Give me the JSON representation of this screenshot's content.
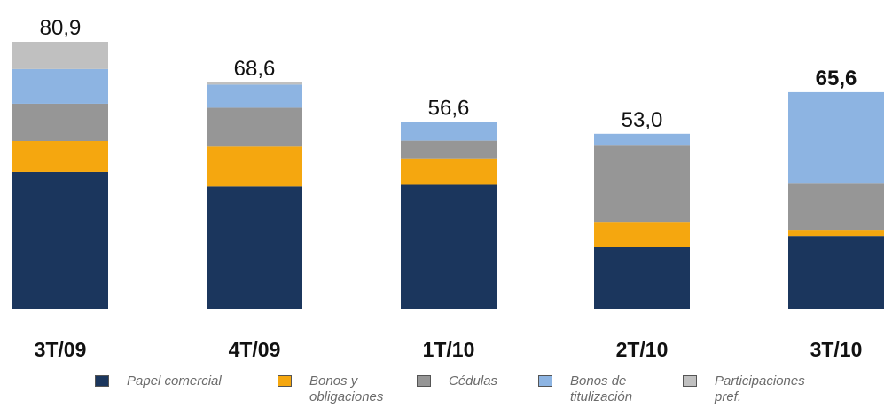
{
  "chart_data": {
    "type": "stacked_bar",
    "categories": [
      "3T/09",
      "4T/09",
      "1T/10",
      "2T/10",
      "3T/10"
    ],
    "series": [
      {
        "name": "Papel comercial",
        "color": "#1b365d",
        "values": [
          41.4,
          37.0,
          37.5,
          18.8,
          22.0
        ]
      },
      {
        "name": "Bonos y obligaciones",
        "color": "#f5a70f",
        "values": [
          9.4,
          12.1,
          8.0,
          7.5,
          1.9
        ]
      },
      {
        "name": "Cédulas",
        "color": "#969696",
        "values": [
          11.3,
          11.8,
          5.4,
          23.1,
          14.2
        ]
      },
      {
        "name": "Bonos de titulización",
        "color": "#8db4e2",
        "values": [
          10.5,
          7.0,
          5.6,
          3.6,
          27.5
        ]
      },
      {
        "name": "Participaciones pref.",
        "color": "#c0c0c0",
        "values": [
          8.3,
          0.7,
          0.1,
          0,
          0
        ]
      }
    ],
    "totals": [
      80.9,
      68.6,
      56.6,
      53.0,
      65.6
    ],
    "total_labels": [
      "80,9",
      "68,6",
      "56,6",
      "53,0",
      "65,6"
    ]
  }
}
